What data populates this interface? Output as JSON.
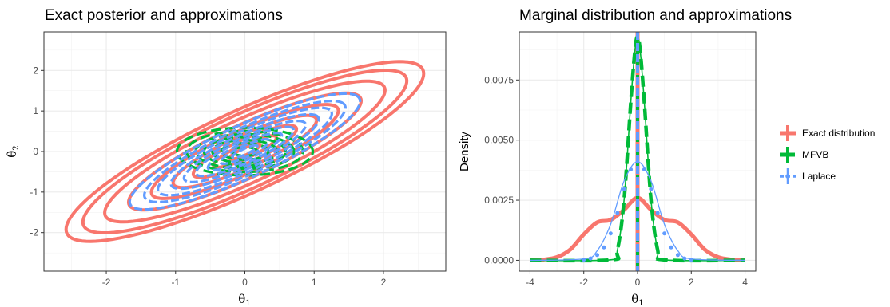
{
  "chart_data": [
    {
      "type": "line",
      "title": "Exact posterior and approximations",
      "xlabel": "θ1",
      "ylabel": "θ2",
      "xlim": [
        -2.9,
        2.9
      ],
      "ylim": [
        -2.95,
        2.95
      ],
      "xticks": [
        -2,
        -1,
        0,
        1,
        2
      ],
      "yticks": [
        -2,
        -1,
        0,
        1,
        2
      ],
      "grid": true,
      "series": [
        {
          "name": "Exact distribution",
          "color": "#F8766D",
          "contour_ellipses": [
            [
              0.28,
              0.23
            ],
            [
              0.58,
              0.47
            ],
            [
              0.95,
              0.78
            ],
            [
              1.32,
              1.09
            ],
            [
              1.72,
              1.41
            ],
            [
              2.14,
              1.75
            ],
            [
              2.58,
              2.1
            ],
            [
              2.98,
              2.44
            ],
            [
              3.29,
              2.71
            ]
          ]
        },
        {
          "name": "MFVB",
          "color": "#00BA38",
          "contour_ellipses": [
            [
              0.18,
              0.18
            ],
            [
              0.34,
              0.34
            ],
            [
              0.47,
              0.47
            ],
            [
              0.59,
              0.59
            ],
            [
              0.71,
              0.71
            ],
            [
              0.84,
              0.84
            ],
            [
              0.98,
              0.98
            ]
          ]
        },
        {
          "name": "Laplace",
          "color": "#619CFF",
          "contour_ellipses": [
            [
              0.23,
              0.19
            ],
            [
              0.45,
              0.37
            ],
            [
              0.68,
              0.56
            ],
            [
              0.9,
              0.74
            ],
            [
              1.12,
              0.92
            ],
            [
              1.36,
              1.12
            ],
            [
              1.6,
              1.32
            ],
            [
              1.85,
              1.53
            ],
            [
              2.12,
              1.74
            ]
          ]
        }
      ]
    },
    {
      "type": "line",
      "title": "Marginal distribution and approximations",
      "xlabel": "θ1",
      "ylabel": "Density",
      "xlim": [
        -4.4,
        4.4
      ],
      "ylim": [
        -0.00045,
        0.0095
      ],
      "xticks": [
        -4,
        -2,
        0,
        2,
        4
      ],
      "yticks": [
        0.0,
        0.0025,
        0.005,
        0.0075
      ],
      "ytick_labels": [
        "0.0000",
        "0.0025",
        "0.0050",
        "0.0075"
      ],
      "grid": true,
      "legend_position": "right",
      "series": [
        {
          "name": "Exact distribution",
          "color": "#F8766D",
          "x": [
            -4,
            -3.5,
            -3,
            -2.5,
            -2,
            -1.5,
            -1,
            -0.5,
            0,
            0.5,
            1,
            1.5,
            2,
            2.5,
            3,
            3.5,
            4
          ],
          "y": [
            0.0,
            3e-05,
            0.00013,
            0.00045,
            0.00108,
            0.00158,
            0.00168,
            0.0021,
            0.0026,
            0.0021,
            0.00168,
            0.00158,
            0.00108,
            0.00045,
            0.00013,
            3e-05,
            0.0
          ]
        },
        {
          "name": "MFVB",
          "color": "#00BA38",
          "x": [
            -4,
            -1,
            -0.75,
            -0.5,
            -0.25,
            -0.1,
            0,
            0.1,
            0.25,
            0.5,
            0.75,
            1,
            4
          ],
          "y": [
            0.0,
            2e-05,
            0.00042,
            0.00252,
            0.0066,
            0.0087,
            0.0093,
            0.0087,
            0.0066,
            0.00252,
            0.00042,
            2e-05,
            0.0
          ]
        },
        {
          "name": "Laplace",
          "color": "#619CFF",
          "x": [
            -4,
            -2,
            -1.5,
            -1,
            -0.5,
            0,
            0.5,
            1,
            1.5,
            2,
            4
          ],
          "y": [
            0.0,
            6e-05,
            0.0004,
            0.0015,
            0.0033,
            0.0041,
            0.0033,
            0.0015,
            0.0004,
            6e-05,
            0.0
          ]
        }
      ]
    }
  ]
}
